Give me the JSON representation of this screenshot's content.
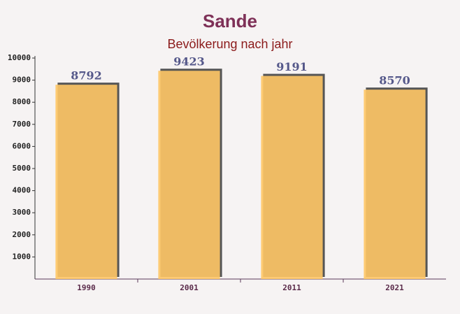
{
  "chart_data": {
    "type": "bar",
    "title": "Sande",
    "subtitle": "Bevölkerung nach jahr",
    "categories": [
      "1990",
      "2001",
      "2011",
      "2021"
    ],
    "values": [
      8792,
      9423,
      9191,
      8570
    ],
    "color": "#ffc766",
    "ylim": [
      0,
      10000
    ],
    "yticks": [
      1000,
      2000,
      3000,
      4000,
      5000,
      6000,
      7000,
      8000,
      9000,
      10000
    ],
    "grid": false
  }
}
